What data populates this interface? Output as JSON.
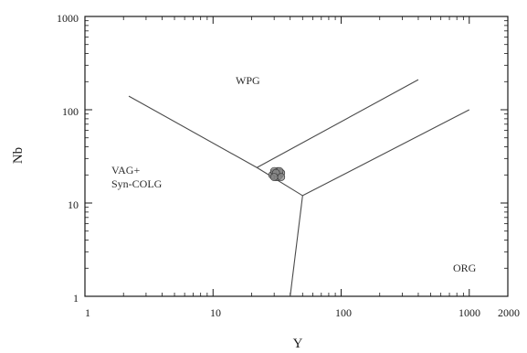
{
  "chart_data": {
    "type": "scatter",
    "title": "",
    "xlabel": "Y",
    "ylabel": "Nb",
    "x_scale": "log",
    "y_scale": "log",
    "xlim": [
      1,
      2000
    ],
    "ylim": [
      1,
      1000
    ],
    "x_ticks": [
      {
        "value": 1,
        "label": "1"
      },
      {
        "value": 10,
        "label": "10"
      },
      {
        "value": 100,
        "label": "100"
      },
      {
        "value": 1000,
        "label": "1000"
      },
      {
        "value": 2000,
        "label": "2000"
      }
    ],
    "y_ticks": [
      {
        "value": 1,
        "label": "1"
      },
      {
        "value": 10,
        "label": "10"
      },
      {
        "value": 100,
        "label": "100"
      },
      {
        "value": 1000,
        "label": "1000"
      }
    ],
    "boundaries": [
      {
        "points": [
          [
            2.2,
            140
          ],
          [
            22,
            24
          ],
          [
            50,
            12
          ],
          [
            1000,
            100
          ]
        ]
      },
      {
        "points": [
          [
            22,
            24
          ],
          [
            400,
            210
          ]
        ]
      },
      {
        "points": [
          [
            50,
            12
          ],
          [
            40,
            1
          ]
        ]
      }
    ],
    "field_labels": [
      {
        "text": "WPG",
        "x": 35,
        "y": 200
      },
      {
        "text": "VAG+",
        "x": 3.2,
        "y": 25
      },
      {
        "text": "Syn-COLG",
        "x": 3.2,
        "y": 17.5
      },
      {
        "text": "ORG",
        "x": 950,
        "y": 2.6
      }
    ],
    "points": [
      {
        "x": 30,
        "y": 21
      },
      {
        "x": 31,
        "y": 19
      },
      {
        "x": 32,
        "y": 22
      },
      {
        "x": 33,
        "y": 20
      },
      {
        "x": 34,
        "y": 21
      },
      {
        "x": 29,
        "y": 20
      },
      {
        "x": 30,
        "y": 22
      },
      {
        "x": 32,
        "y": 19
      },
      {
        "x": 33,
        "y": 22
      },
      {
        "x": 31,
        "y": 21
      },
      {
        "x": 34,
        "y": 19
      },
      {
        "x": 30,
        "y": 19
      }
    ],
    "grid": false,
    "colors": {
      "line": "#4a4a4a",
      "point_fill": "#8a8a8a",
      "point_edge": "#3a3a3a",
      "axis": "#1a1a1a"
    }
  }
}
